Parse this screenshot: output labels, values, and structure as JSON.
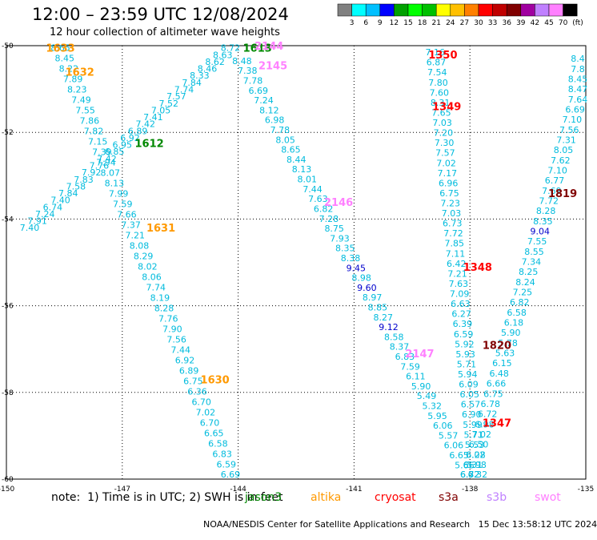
{
  "header": {
    "title": "12:00 – 23:59 UTC 12/08/2024",
    "subtitle": "12 hour collection of altimeter wave heights"
  },
  "legend": {
    "colors": [
      "#808080",
      "#00ffff",
      "#00c0ff",
      "#0000ff",
      "#00a000",
      "#00ff00",
      "#00c000",
      "#ffff00",
      "#ffc000",
      "#ff8000",
      "#ff0000",
      "#c00000",
      "#800000",
      "#a000a0",
      "#c080ff",
      "#ff80ff",
      "#000000"
    ],
    "labels": [
      "3",
      "6",
      "9",
      "12",
      "15",
      "18",
      "21",
      "24",
      "27",
      "30",
      "33",
      "36",
      "39",
      "42",
      "45",
      "70"
    ],
    "unit": "(ft)"
  },
  "map": {
    "lon_range": [
      -150,
      -135
    ],
    "lat_range": [
      -60,
      -50
    ],
    "x_ticks": [
      "-150",
      "-147",
      "-144",
      "-141",
      "-138",
      "-135"
    ],
    "y_ticks": [
      "-50",
      "-52",
      "-54",
      "-56",
      "-58",
      "-60"
    ],
    "pass_labels": [
      {
        "text": "1633",
        "lon": -148.6,
        "lat": -50.05,
        "color": "#ff9900"
      },
      {
        "text": "1632",
        "lon": -148.1,
        "lat": -50.6,
        "color": "#ff9900"
      },
      {
        "text": "1612",
        "lon": -146.3,
        "lat": -52.25,
        "color": "#008800"
      },
      {
        "text": "1631",
        "lon": -146.0,
        "lat": -54.2,
        "color": "#ff9900"
      },
      {
        "text": "1630",
        "lon": -144.6,
        "lat": -57.7,
        "color": "#ff9900"
      },
      {
        "text": "1613",
        "lon": -143.5,
        "lat": -50.05,
        "color": "#008800"
      },
      {
        "text": "2144",
        "lon": -143.2,
        "lat": -50.0,
        "color": "#ff80ff"
      },
      {
        "text": "2145",
        "lon": -143.1,
        "lat": -50.45,
        "color": "#ff80ff"
      },
      {
        "text": "2146",
        "lon": -141.4,
        "lat": -53.6,
        "color": "#ff80ff"
      },
      {
        "text": "2147",
        "lon": -139.3,
        "lat": -57.1,
        "color": "#ff80ff"
      },
      {
        "text": "1350",
        "lon": -138.7,
        "lat": -50.2,
        "color": "#ff0000"
      },
      {
        "text": "1349",
        "lon": -138.6,
        "lat": -51.4,
        "color": "#ff0000"
      },
      {
        "text": "1348",
        "lon": -137.8,
        "lat": -55.1,
        "color": "#ff0000"
      },
      {
        "text": "1347",
        "lon": -137.3,
        "lat": -58.7,
        "color": "#ff0000"
      },
      {
        "text": "1820",
        "lon": -137.3,
        "lat": -56.9,
        "color": "#800000"
      },
      {
        "text": "1819",
        "lon": -135.6,
        "lat": -53.4,
        "color": "#800000"
      }
    ],
    "tracks": [
      {
        "name": "pass-1632-1631-1630",
        "start": [
          -148.6,
          -50.05
        ],
        "end": [
          -144.2,
          -59.9
        ],
        "color": "#00bbdd",
        "values": [
          "8.65",
          "8.45",
          "8.22",
          "7.89",
          "8.23",
          "7.49",
          "7.55",
          "7.86",
          "7.82",
          "7.15",
          "7.39",
          "7.94",
          "8.07",
          "8.13",
          "7.99",
          "7.59",
          "7.66",
          "7.37",
          "7.21",
          "8.08",
          "8.29",
          "8.02",
          "8.06",
          "7.74",
          "8.19",
          "8.28",
          "7.76",
          "7.90",
          "7.56",
          "7.44",
          "6.92",
          "6.89",
          "6.75",
          "6.36",
          "6.70",
          "7.02",
          "6.70",
          "6.65",
          "6.58",
          "6.83",
          "6.59",
          "6.69"
        ]
      },
      {
        "name": "pass-1633-1612",
        "start": [
          -149.4,
          -54.2
        ],
        "end": [
          -144.2,
          -50.05
        ],
        "color": "#00bbdd",
        "values": [
          "7.40",
          "7.91",
          "7.24",
          "6.74",
          "7.40",
          "7.84",
          "7.58",
          "7.83",
          "7.92",
          "7.76",
          "7.42",
          "6.85",
          "6.95",
          "6.92",
          "6.89",
          "7.42",
          "7.41",
          "7.05",
          "7.52",
          "7.57",
          "7.74",
          "7.84",
          "8.33",
          "8.46",
          "8.62",
          "8.63",
          "8.72"
        ]
      },
      {
        "name": "pass-2145-2146-2147",
        "start": [
          -143.9,
          -50.35
        ],
        "end": [
          -138.0,
          -59.9
        ],
        "color": "#00bbdd",
        "values": [
          "8.48",
          "7.38",
          "7.78",
          "6.69",
          "7.24",
          "8.12",
          "6.98",
          "7.78",
          "8.05",
          "8.65",
          "8.44",
          "8.13",
          "8.01",
          "7.44",
          "7.63",
          "6.82",
          "7.28",
          "8.75",
          "7.93",
          "8.35",
          "8.38",
          "9.45",
          "8.98",
          "9.60",
          "8.97",
          "8.85",
          "8.27",
          "9.12",
          "8.58",
          "8.37",
          "6.83",
          "7.59",
          "6.11",
          "5.90",
          "5.49",
          "5.32",
          "5.95",
          "6.06",
          "5.57",
          "6.06",
          "6.65",
          "5.66",
          "6.72"
        ]
      },
      {
        "name": "pass-1350-1349-1348-1347",
        "start": [
          -138.9,
          -50.15
        ],
        "end": [
          -137.8,
          -59.9
        ],
        "color": "#00bbdd",
        "values": [
          "7.16",
          "6.87",
          "7.54",
          "7.80",
          "7.60",
          "8.31",
          "7.65",
          "7.03",
          "7.20",
          "7.30",
          "7.57",
          "7.02",
          "7.17",
          "6.96",
          "6.75",
          "7.23",
          "7.03",
          "6.73",
          "7.72",
          "7.85",
          "7.11",
          "6.42",
          "7.21",
          "7.63",
          "7.09",
          "6.63",
          "6.27",
          "6.39",
          "6.59",
          "5.92",
          "5.93",
          "5.71",
          "5.94",
          "6.09",
          "6.05",
          "6.57",
          "6.90",
          "5.99",
          "5.71",
          "5.53",
          "6.02",
          "5.98",
          "6.32"
        ]
      },
      {
        "name": "pass-1819-1820",
        "start": [
          -134.9,
          -50.3
        ],
        "end": [
          -138.0,
          -59.9
        ],
        "color": "#00bbdd",
        "values": [
          "8.4",
          "7.8",
          "8.45",
          "8.47",
          "7.64",
          "6.69",
          "7.10",
          "7.56",
          "7.31",
          "8.05",
          "7.62",
          "7.10",
          "6.77",
          "7.69",
          "7.72",
          "8.28",
          "8.35",
          "9.04",
          "7.55",
          "8.55",
          "7.34",
          "8.25",
          "8.24",
          "7.25",
          "6.82",
          "6.58",
          "6.18",
          "5.90",
          "5.78",
          "5.63",
          "6.15",
          "6.48",
          "6.66",
          "6.75",
          "6.78",
          "6.72",
          "6.98",
          "7.02",
          "6.50",
          "6.28",
          "6.31",
          "6.32"
        ]
      }
    ],
    "highlight_values": [
      {
        "text": "9.45",
        "color": "#0000cc"
      },
      {
        "text": "9.60",
        "color": "#0000cc"
      },
      {
        "text": "9.12",
        "color": "#0000cc"
      },
      {
        "text": "9.04",
        "color": "#0000cc"
      }
    ]
  },
  "footer": {
    "note": "note:  1) Time is in UTC; 2) SWH is in feet",
    "satellites": [
      {
        "name": "jason3",
        "color": "#008800"
      },
      {
        "name": "altika",
        "color": "#ff9900"
      },
      {
        "name": "cryosat",
        "color": "#ff0000"
      },
      {
        "name": "s3a",
        "color": "#800000"
      },
      {
        "name": "s3b",
        "color": "#c080ff"
      },
      {
        "name": "swot",
        "color": "#ff80ff"
      }
    ],
    "credit": "NOAA/NESDIS Center for Satellite Applications and Research",
    "timestamp": "15 Dec 13:58:12 UTC 2024"
  }
}
